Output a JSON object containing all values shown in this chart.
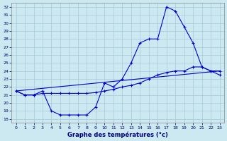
{
  "xlabel": "Graphe des températures (°c)",
  "bg_color": "#cce8f0",
  "grid_color": "#aac8d8",
  "line_color": "#0000cc",
  "xlim": [
    -0.5,
    23.5
  ],
  "ylim": [
    17.5,
    32.5
  ],
  "yticks": [
    18,
    19,
    20,
    21,
    22,
    23,
    24,
    25,
    26,
    27,
    28,
    29,
    30,
    31,
    32
  ],
  "xticks": [
    0,
    1,
    2,
    3,
    4,
    5,
    6,
    7,
    8,
    9,
    10,
    11,
    12,
    13,
    14,
    15,
    16,
    17,
    18,
    19,
    20,
    21,
    22,
    23
  ],
  "series1_x": [
    0,
    1,
    2,
    3,
    4,
    5,
    6,
    7,
    8,
    9,
    10,
    11,
    12,
    13,
    14,
    15,
    16,
    17,
    18,
    19,
    20,
    21,
    22,
    23
  ],
  "series1_y": [
    21.5,
    21.0,
    21.0,
    21.5,
    19.0,
    18.5,
    18.5,
    18.5,
    18.5,
    19.5,
    22.5,
    22.0,
    23.0,
    25.0,
    27.5,
    28.0,
    28.0,
    32.0,
    31.5,
    29.5,
    27.5,
    24.5,
    24.0,
    24.0
  ],
  "series2_x": [
    0,
    1,
    2,
    3,
    4,
    5,
    6,
    7,
    8,
    9,
    10,
    11,
    12,
    13,
    14,
    15,
    16,
    17,
    18,
    19,
    20,
    21,
    22,
    23
  ],
  "series2_y": [
    21.5,
    21.0,
    21.0,
    21.2,
    21.2,
    21.2,
    21.2,
    21.2,
    21.2,
    21.3,
    21.5,
    21.7,
    22.0,
    22.2,
    22.5,
    23.0,
    23.5,
    23.8,
    24.0,
    24.0,
    24.5,
    24.5,
    24.0,
    23.5
  ],
  "series3_x": [
    0,
    23
  ],
  "series3_y": [
    21.5,
    24.0
  ]
}
